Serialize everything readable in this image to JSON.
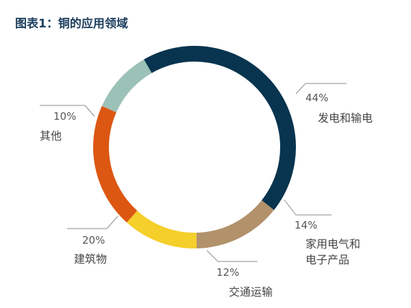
{
  "chart_data": {
    "type": "pie",
    "title": "图表1：铜的应用领域",
    "categories": [
      "发电和输电",
      "家用电气和电子产品",
      "交通运输",
      "建筑物",
      "其他"
    ],
    "values": [
      44,
      14,
      12,
      20,
      10
    ],
    "value_labels": [
      "44%",
      "14%",
      "12%",
      "20%",
      "10%"
    ],
    "label_lines": [
      [
        "发电和输电"
      ],
      [
        "家用电气和",
        "电子产品"
      ],
      [
        "交通运输"
      ],
      [
        "建筑物"
      ],
      [
        "其他"
      ]
    ],
    "colors": [
      "#08344f",
      "#b2926b",
      "#f5cf2a",
      "#dc5712",
      "#9cc2b8"
    ],
    "donut": true,
    "legend": "none"
  }
}
